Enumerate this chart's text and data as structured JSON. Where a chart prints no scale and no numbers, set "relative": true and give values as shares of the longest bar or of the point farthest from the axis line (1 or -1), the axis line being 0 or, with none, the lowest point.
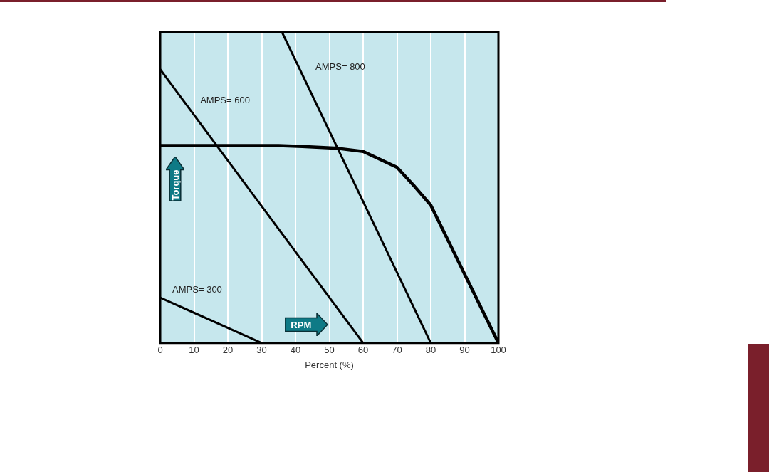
{
  "chart_data": {
    "type": "line",
    "xlabel": "Percent (%)",
    "ylabel": "Torque",
    "relative": true,
    "xlim": [
      0,
      100
    ],
    "xticks": [
      0,
      10,
      20,
      30,
      40,
      50,
      60,
      70,
      80,
      90,
      100
    ],
    "grid": "x",
    "legend": false,
    "tick_labels": "x",
    "marker": "none",
    "line_style": "solid",
    "annotations": [
      "RPM"
    ],
    "series": [
      {
        "name": "AMPS= 800",
        "color": "#000000",
        "x": [
          36,
          80
        ],
        "values": [
          1,
          0
        ]
      },
      {
        "name": "AMPS= 600",
        "color": "#000000",
        "x": [
          0,
          60
        ],
        "values": [
          0.88,
          0
        ]
      },
      {
        "name": "AMPS= 300",
        "color": "#000000",
        "x": [
          0,
          30
        ],
        "values": [
          0.146,
          0
        ]
      },
      {
        "color": "#000000",
        "x": [
          0,
          35,
          42,
          52.5,
          60,
          70,
          75,
          80,
          100
        ],
        "values": [
          0.635,
          0.635,
          0.632,
          0.626,
          0.616,
          0.565,
          0.506,
          0.443,
          0
        ]
      }
    ]
  }
}
